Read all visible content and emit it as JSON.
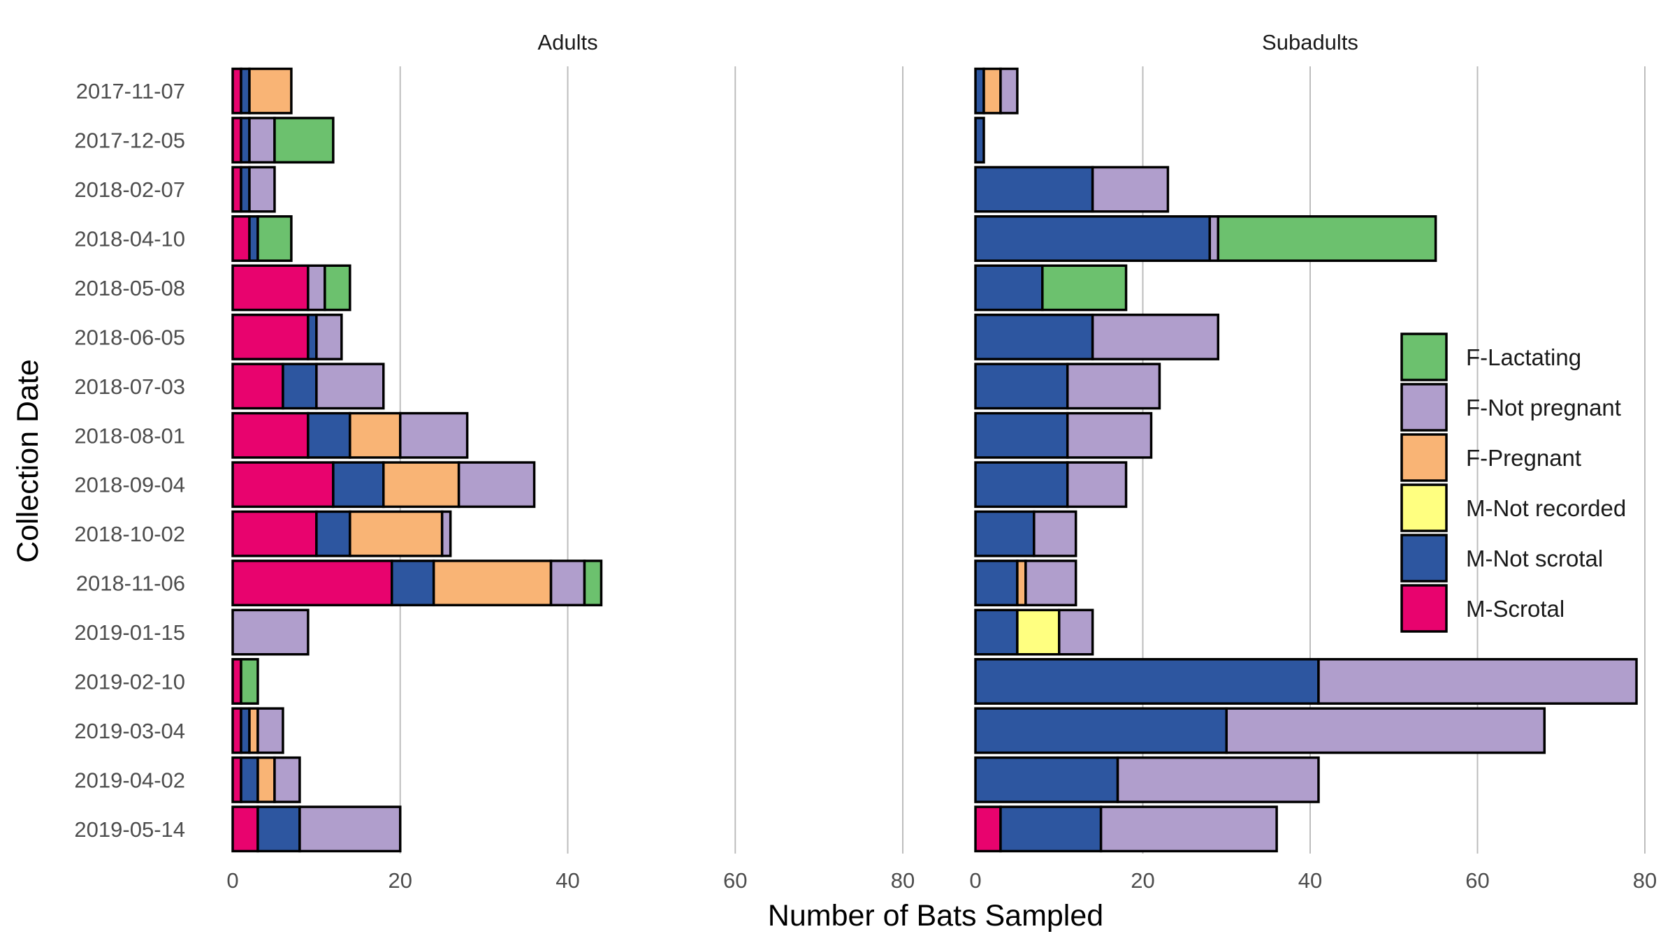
{
  "chart_data": {
    "type": "bar",
    "orientation": "horizontal",
    "stacked": true,
    "xlabel": "Number of Bats Sampled",
    "ylabel": "Collection Date",
    "xlim": [
      0,
      80
    ],
    "x_ticks": [
      0,
      20,
      40,
      60,
      80
    ],
    "x_tick_labels": [
      "0",
      "20",
      "40",
      "60",
      "80"
    ],
    "grid": "vertical major",
    "legend_position": "right",
    "categories": [
      "2017-11-07",
      "2017-12-05",
      "2018-02-07",
      "2018-04-10",
      "2018-05-08",
      "2018-06-05",
      "2018-07-03",
      "2018-08-01",
      "2018-09-04",
      "2018-10-02",
      "2018-11-06",
      "2019-01-15",
      "2019-02-10",
      "2019-03-04",
      "2019-04-02",
      "2019-05-14"
    ],
    "legend": [
      {
        "name": "F-Lactating",
        "color": "#6CC16E"
      },
      {
        "name": "F-Not pregnant",
        "color": "#B09ECC"
      },
      {
        "name": "F-Pregnant",
        "color": "#F9B475"
      },
      {
        "name": "M-Not recorded",
        "color": "#FFFF80"
      },
      {
        "name": "M-Not scrotal",
        "color": "#2D56A0"
      },
      {
        "name": "M-Scrotal",
        "color": "#E8036E"
      }
    ],
    "stack_order": [
      "M-Scrotal",
      "M-Not scrotal",
      "M-Not recorded",
      "F-Pregnant",
      "F-Not pregnant",
      "F-Lactating"
    ],
    "panels": [
      {
        "title": "Adults",
        "series": [
          {
            "name": "M-Scrotal",
            "values": [
              1,
              1,
              1,
              2,
              9,
              9,
              6,
              9,
              12,
              10,
              19,
              0,
              1,
              1,
              1,
              3
            ]
          },
          {
            "name": "M-Not scrotal",
            "values": [
              1,
              1,
              1,
              1,
              0,
              1,
              4,
              5,
              6,
              4,
              5,
              0,
              0,
              1,
              2,
              5
            ]
          },
          {
            "name": "M-Not recorded",
            "values": [
              0,
              0,
              0,
              0,
              0,
              0,
              0,
              0,
              0,
              0,
              0,
              0,
              0,
              0,
              0,
              0
            ]
          },
          {
            "name": "F-Pregnant",
            "values": [
              5,
              0,
              0,
              0,
              0,
              0,
              0,
              6,
              9,
              11,
              14,
              0,
              0,
              1,
              2,
              0
            ]
          },
          {
            "name": "F-Not pregnant",
            "values": [
              0,
              3,
              3,
              0,
              2,
              3,
              8,
              8,
              9,
              1,
              4,
              9,
              0,
              3,
              3,
              12
            ]
          },
          {
            "name": "F-Lactating",
            "values": [
              0,
              7,
              0,
              4,
              3,
              0,
              0,
              0,
              0,
              0,
              2,
              0,
              2,
              0,
              0,
              0
            ]
          }
        ]
      },
      {
        "title": "Subadults",
        "series": [
          {
            "name": "M-Scrotal",
            "values": [
              0,
              0,
              0,
              0,
              0,
              0,
              0,
              0,
              0,
              0,
              0,
              0,
              0,
              0,
              0,
              3
            ]
          },
          {
            "name": "M-Not scrotal",
            "values": [
              1,
              1,
              14,
              28,
              8,
              14,
              11,
              11,
              11,
              7,
              5,
              5,
              41,
              30,
              17,
              12
            ]
          },
          {
            "name": "M-Not recorded",
            "values": [
              0,
              0,
              0,
              0,
              0,
              0,
              0,
              0,
              0,
              0,
              0,
              5,
              0,
              0,
              0,
              0
            ]
          },
          {
            "name": "F-Pregnant",
            "values": [
              2,
              0,
              0,
              0,
              0,
              0,
              0,
              0,
              0,
              0,
              1,
              0,
              0,
              0,
              0,
              0
            ]
          },
          {
            "name": "F-Not pregnant",
            "values": [
              2,
              0,
              9,
              1,
              0,
              15,
              11,
              10,
              7,
              5,
              6,
              4,
              38,
              38,
              24,
              21
            ]
          },
          {
            "name": "F-Lactating",
            "values": [
              0,
              0,
              0,
              26,
              10,
              0,
              0,
              0,
              0,
              0,
              0,
              0,
              0,
              0,
              0,
              0
            ]
          }
        ]
      }
    ]
  }
}
